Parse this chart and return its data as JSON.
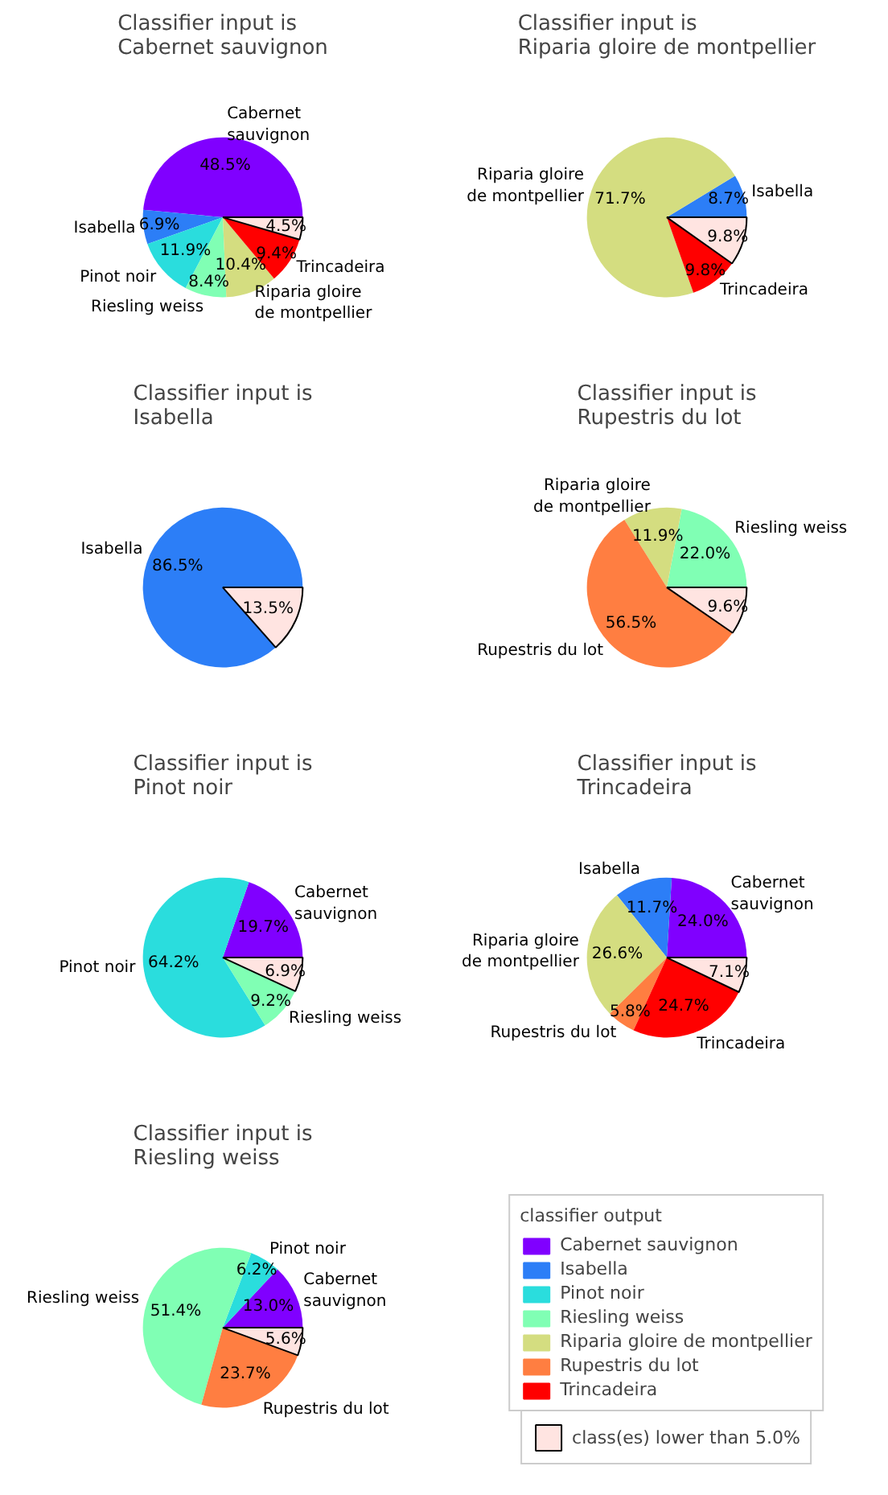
{
  "chart_data": [
    {
      "type": "pie",
      "title": "Classifier input is\nCabernet sauvignon",
      "categories": [
        "Cabernet sauvignon",
        "Isabella",
        "Pinot noir",
        "Riesling weiss",
        "Riparia gloire de montpellier",
        "Trincadeira",
        null
      ],
      "values": [
        48.5,
        6.9,
        11.9,
        8.4,
        10.4,
        9.4,
        4.5
      ],
      "value_labels": [
        "48.5%",
        "6.9%",
        "11.9%",
        "8.4%",
        "10.4%",
        "9.4%",
        "4.5%"
      ],
      "colors": [
        "#8000ff",
        "#2c7ef7",
        "#2adddd",
        "#80ffb4",
        "#d4dd80",
        "#ff0000",
        "#ffe4e1"
      ]
    },
    {
      "type": "pie",
      "title": "Classifier input is\nRiparia gloire de montpellier",
      "categories": [
        "Isabella",
        "Riparia gloire de montpellier",
        "Trincadeira",
        null
      ],
      "values": [
        8.7,
        71.7,
        9.8,
        9.8
      ],
      "value_labels": [
        "8.7%",
        "71.7%",
        "9.8%",
        "9.8%"
      ],
      "colors": [
        "#2c7ef7",
        "#d4dd80",
        "#ff0000",
        "#ffe4e1"
      ]
    },
    {
      "type": "pie",
      "title": "Classifier input is\nIsabella",
      "categories": [
        "Isabella",
        null
      ],
      "values": [
        86.5,
        13.5
      ],
      "value_labels": [
        "86.5%",
        "13.5%"
      ],
      "colors": [
        "#2c7ef7",
        "#ffe4e1"
      ]
    },
    {
      "type": "pie",
      "title": "Classifier input is\nRupestris du lot",
      "categories": [
        "Riesling weiss",
        "Riparia gloire de montpellier",
        "Rupestris du lot",
        null
      ],
      "values": [
        22.0,
        11.9,
        56.5,
        9.6
      ],
      "value_labels": [
        "22.0%",
        "11.9%",
        "56.5%",
        "9.6%"
      ],
      "colors": [
        "#80ffb4",
        "#d4dd80",
        "#ff7e41",
        "#ffe4e1"
      ]
    },
    {
      "type": "pie",
      "title": "Classifier input is\nPinot noir",
      "categories": [
        "Cabernet sauvignon",
        "Pinot noir",
        "Riesling weiss",
        null
      ],
      "values": [
        19.7,
        64.2,
        9.2,
        6.9
      ],
      "value_labels": [
        "19.7%",
        "64.2%",
        "9.2%",
        "6.9%"
      ],
      "colors": [
        "#8000ff",
        "#2adddd",
        "#80ffb4",
        "#ffe4e1"
      ]
    },
    {
      "type": "pie",
      "title": "Classifier input is\nTrincadeira",
      "categories": [
        "Cabernet sauvignon",
        "Isabella",
        "Riparia gloire de montpellier",
        "Rupestris du lot",
        "Trincadeira",
        null
      ],
      "values": [
        24.0,
        11.7,
        26.6,
        5.8,
        24.7,
        7.1
      ],
      "value_labels": [
        "24.0%",
        "11.7%",
        "26.6%",
        "5.8%",
        "24.7%",
        "7.1%"
      ],
      "colors": [
        "#8000ff",
        "#2c7ef7",
        "#d4dd80",
        "#ff7e41",
        "#ff0000",
        "#ffe4e1"
      ]
    },
    {
      "type": "pie",
      "title": "Classifier input is\nRiesling weiss",
      "categories": [
        "Cabernet sauvignon",
        "Pinot noir",
        "Riesling weiss",
        "Rupestris du lot",
        null
      ],
      "values": [
        13.0,
        6.2,
        51.4,
        23.7,
        5.6
      ],
      "value_labels": [
        "13.0%",
        "6.2%",
        "51.4%",
        "23.7%",
        "5.6%"
      ],
      "colors": [
        "#8000ff",
        "#2adddd",
        "#80ffb4",
        "#ff7e41",
        "#ffe4e1"
      ]
    },
    {
      "type": "other",
      "legend_title": "classifier output",
      "categories": [
        "Cabernet sauvignon",
        "Isabella",
        "Pinot noir",
        "Riesling weiss",
        "Riparia gloire de montpellier",
        "Rupestris du lot",
        "Trincadeira",
        "class(es) lower than 5.0%"
      ],
      "colors": [
        "#8000ff",
        "#2c7ef7",
        "#2adddd",
        "#80ffb4",
        "#d4dd80",
        "#ff7e41",
        "#ff0000",
        "#ffe4e1"
      ]
    }
  ]
}
